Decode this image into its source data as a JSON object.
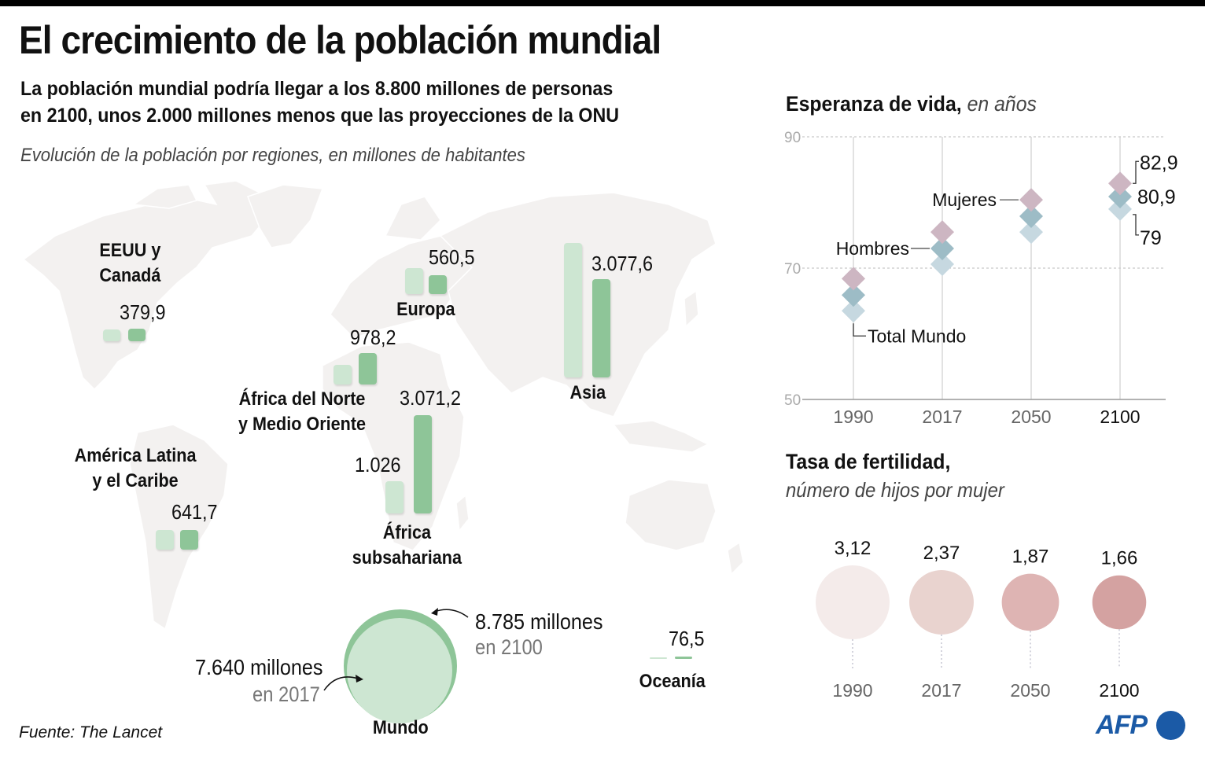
{
  "header": {
    "title": "El crecimiento de la población mundial",
    "subtitle_line1": "La población mundial podría llegar a los 8.800 millones de personas",
    "subtitle_line2": "en 2100, unos 2.000 millones menos que las proyecciones de la ONU",
    "map_caption": "Evolución de la población por regiones, en millones de habitantes"
  },
  "source": "Fuente: The Lancet",
  "logo": "AFP",
  "colors": {
    "bar_2017": "#cde6d2",
    "bar_2100": "#8ec598",
    "land": "#f3f1f0",
    "mujeres": "#cdb6c2",
    "hombres": "#9dbcc6",
    "total": "#c6d8e0",
    "afp_blue": "#1b5aa6"
  },
  "chart_data": [
    {
      "type": "bar",
      "title": "Evolución de la población por regiones, en millones de habitantes",
      "series_names": [
        "2017",
        "2100"
      ],
      "regions": [
        {
          "name_line1": "EEUU y",
          "name_line2": "Canadá",
          "value_2100": 379.9,
          "label_2100": "379,9"
        },
        {
          "name_line1": "Europa",
          "name_line2": "",
          "value_2100": 560.5,
          "label_2100": "560,5"
        },
        {
          "name_line1": "Asia",
          "name_line2": "",
          "value_2100": 3077.6,
          "label_2100": "3.077,6"
        },
        {
          "name_line1": "África del Norte",
          "name_line2": "y Medio Oriente",
          "value_2100": 978.2,
          "label_2100": "978,2"
        },
        {
          "name_line1": "América Latina",
          "name_line2": "y el Caribe",
          "value_2100": 641.7,
          "label_2100": "641,7"
        },
        {
          "name_line1": "África",
          "name_line2": "subsahariana",
          "value_2017": 1026,
          "label_2017": "1.026",
          "value_2100": 3071.2,
          "label_2100": "3.071,2"
        },
        {
          "name_line1": "Oceanía",
          "name_line2": "",
          "value_2100": 76.5,
          "label_2100": "76,5"
        }
      ],
      "world": {
        "name": "Mundo",
        "value_2017": 7640,
        "label_2017": "7.640 millones",
        "sub_2017": "en 2017",
        "value_2100": 8785,
        "label_2100": "8.785 millones",
        "sub_2100": "en 2100"
      }
    },
    {
      "type": "scatter",
      "title": "Esperanza de vida,",
      "title_unit": "en años",
      "categories": [
        "1990",
        "2017",
        "2050",
        "2100"
      ],
      "ylim": [
        50,
        90
      ],
      "yticks": [
        50,
        70,
        90
      ],
      "grid": true,
      "series": [
        {
          "name": "Mujeres",
          "values": [
            68.4,
            75.5,
            80.4,
            82.9
          ]
        },
        {
          "name": "Hombres",
          "values": [
            65.9,
            73.0,
            77.9,
            80.9
          ]
        },
        {
          "name": "Total Mundo",
          "values": [
            63.5,
            70.6,
            75.5,
            79
          ]
        }
      ],
      "value_labels_2100": [
        "82,9",
        "80,9",
        "79"
      ]
    },
    {
      "type": "bubble",
      "title": "Tasa de fertilidad,",
      "subtitle": "número de hijos por mujer",
      "categories": [
        "1990",
        "2017",
        "2050",
        "2100"
      ],
      "values": [
        3.12,
        2.37,
        1.87,
        1.66
      ],
      "labels": [
        "3,12",
        "2,37",
        "1,87",
        "1,66"
      ]
    }
  ]
}
